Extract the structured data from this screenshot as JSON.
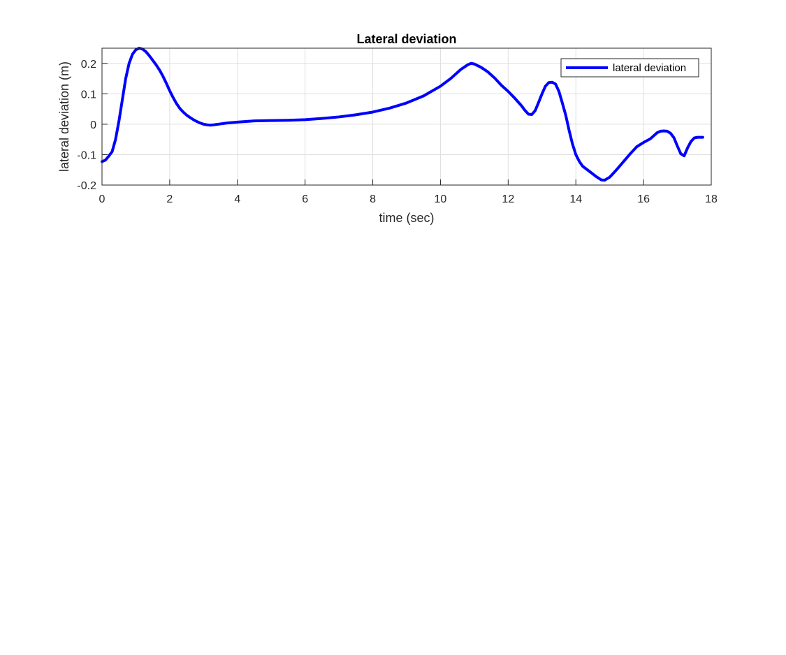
{
  "chart_data": {
    "type": "line",
    "title": "Lateral deviation",
    "xlabel": "time (sec)",
    "ylabel": "lateral deviation (m)",
    "xlim": [
      0,
      18
    ],
    "ylim": [
      -0.2,
      0.25
    ],
    "xticks": [
      0,
      2,
      4,
      6,
      8,
      10,
      12,
      14,
      16,
      18
    ],
    "xtick_labels": [
      "0",
      "2",
      "4",
      "6",
      "8",
      "10",
      "12",
      "14",
      "16",
      "18"
    ],
    "yticks": [
      -0.2,
      -0.1,
      0,
      0.1,
      0.2
    ],
    "ytick_labels": [
      "-0.2",
      "-0.1",
      "0",
      "0.1",
      "0.2"
    ],
    "grid": true,
    "legend_position": "top-right",
    "series": [
      {
        "name": "lateral deviation",
        "color": "#0000ff",
        "points": [
          [
            0.0,
            -0.123
          ],
          [
            0.1,
            -0.118
          ],
          [
            0.2,
            -0.105
          ],
          [
            0.3,
            -0.09
          ],
          [
            0.4,
            -0.05
          ],
          [
            0.5,
            0.01
          ],
          [
            0.6,
            0.08
          ],
          [
            0.7,
            0.15
          ],
          [
            0.8,
            0.2
          ],
          [
            0.9,
            0.23
          ],
          [
            1.0,
            0.245
          ],
          [
            1.1,
            0.25
          ],
          [
            1.2,
            0.247
          ],
          [
            1.3,
            0.238
          ],
          [
            1.4,
            0.225
          ],
          [
            1.5,
            0.21
          ],
          [
            1.6,
            0.195
          ],
          [
            1.7,
            0.178
          ],
          [
            1.8,
            0.158
          ],
          [
            1.9,
            0.135
          ],
          [
            2.0,
            0.11
          ],
          [
            2.1,
            0.088
          ],
          [
            2.2,
            0.068
          ],
          [
            2.3,
            0.052
          ],
          [
            2.4,
            0.04
          ],
          [
            2.5,
            0.03
          ],
          [
            2.6,
            0.022
          ],
          [
            2.7,
            0.015
          ],
          [
            2.8,
            0.009
          ],
          [
            2.9,
            0.004
          ],
          [
            3.0,
            0.0
          ],
          [
            3.1,
            -0.002
          ],
          [
            3.2,
            -0.003
          ],
          [
            3.3,
            -0.002
          ],
          [
            3.5,
            0.001
          ],
          [
            3.7,
            0.004
          ],
          [
            4.0,
            0.007
          ],
          [
            4.5,
            0.011
          ],
          [
            5.0,
            0.012
          ],
          [
            5.5,
            0.013
          ],
          [
            6.0,
            0.015
          ],
          [
            6.5,
            0.019
          ],
          [
            7.0,
            0.024
          ],
          [
            7.5,
            0.031
          ],
          [
            8.0,
            0.04
          ],
          [
            8.5,
            0.053
          ],
          [
            9.0,
            0.07
          ],
          [
            9.5,
            0.093
          ],
          [
            10.0,
            0.125
          ],
          [
            10.3,
            0.15
          ],
          [
            10.6,
            0.18
          ],
          [
            10.8,
            0.195
          ],
          [
            10.9,
            0.2
          ],
          [
            11.0,
            0.198
          ],
          [
            11.2,
            0.187
          ],
          [
            11.4,
            0.172
          ],
          [
            11.6,
            0.152
          ],
          [
            11.8,
            0.128
          ],
          [
            12.0,
            0.108
          ],
          [
            12.2,
            0.085
          ],
          [
            12.4,
            0.06
          ],
          [
            12.5,
            0.045
          ],
          [
            12.6,
            0.033
          ],
          [
            12.7,
            0.032
          ],
          [
            12.8,
            0.045
          ],
          [
            12.9,
            0.072
          ],
          [
            13.0,
            0.1
          ],
          [
            13.1,
            0.125
          ],
          [
            13.2,
            0.137
          ],
          [
            13.3,
            0.138
          ],
          [
            13.4,
            0.132
          ],
          [
            13.5,
            0.108
          ],
          [
            13.6,
            0.07
          ],
          [
            13.7,
            0.03
          ],
          [
            13.8,
            -0.02
          ],
          [
            13.9,
            -0.065
          ],
          [
            14.0,
            -0.1
          ],
          [
            14.1,
            -0.122
          ],
          [
            14.2,
            -0.138
          ],
          [
            14.4,
            -0.155
          ],
          [
            14.6,
            -0.172
          ],
          [
            14.75,
            -0.183
          ],
          [
            14.85,
            -0.184
          ],
          [
            15.0,
            -0.174
          ],
          [
            15.2,
            -0.15
          ],
          [
            15.4,
            -0.124
          ],
          [
            15.6,
            -0.098
          ],
          [
            15.8,
            -0.074
          ],
          [
            16.0,
            -0.06
          ],
          [
            16.2,
            -0.048
          ],
          [
            16.3,
            -0.038
          ],
          [
            16.4,
            -0.028
          ],
          [
            16.5,
            -0.023
          ],
          [
            16.6,
            -0.022
          ],
          [
            16.7,
            -0.023
          ],
          [
            16.8,
            -0.03
          ],
          [
            16.9,
            -0.045
          ],
          [
            17.0,
            -0.072
          ],
          [
            17.1,
            -0.097
          ],
          [
            17.2,
            -0.104
          ],
          [
            17.3,
            -0.078
          ],
          [
            17.4,
            -0.057
          ],
          [
            17.5,
            -0.045
          ],
          [
            17.6,
            -0.043
          ],
          [
            17.75,
            -0.043
          ]
        ]
      }
    ]
  }
}
